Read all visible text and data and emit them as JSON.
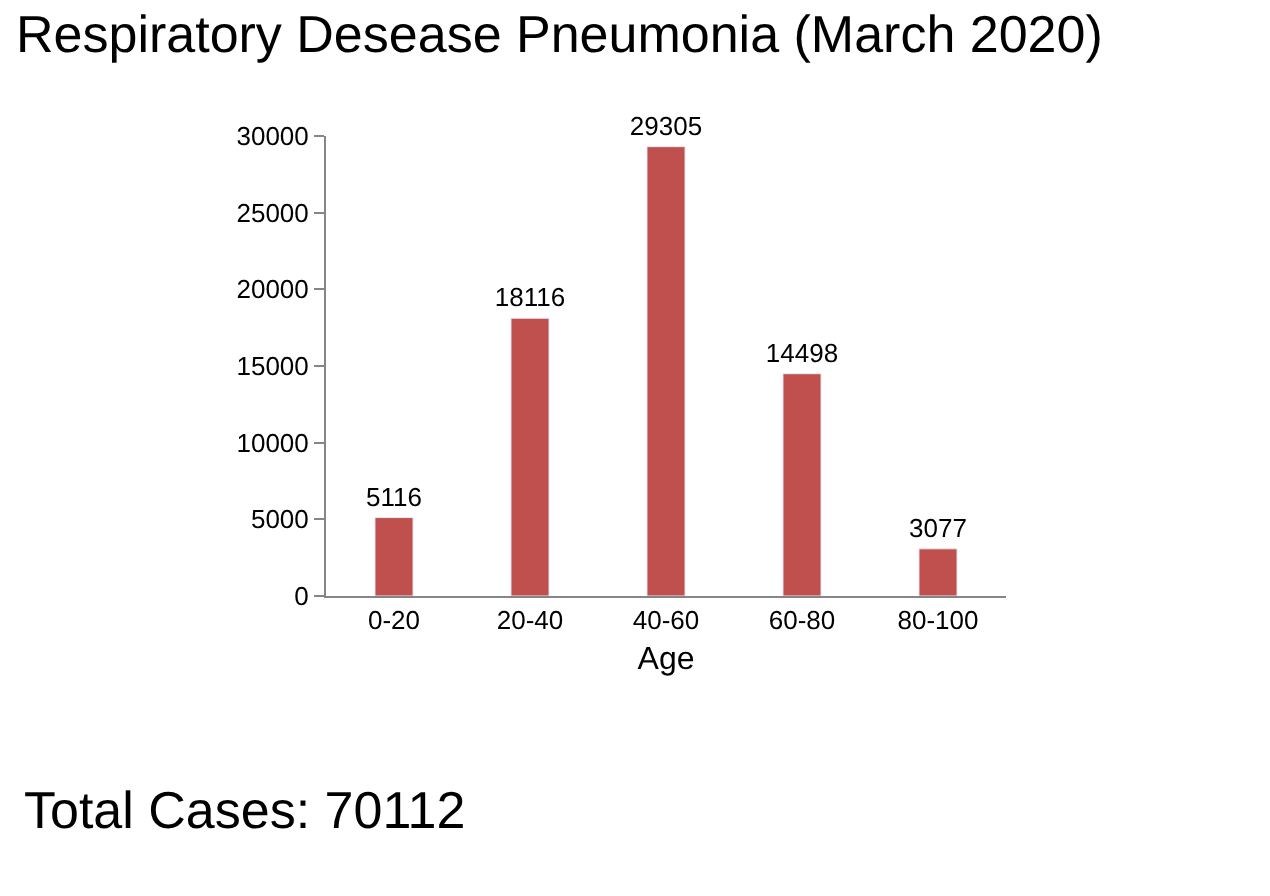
{
  "chart_data": {
    "type": "bar",
    "title": "Respiratory Desease Pneumonia (March 2020)",
    "xlabel": "Age",
    "categories": [
      "0-20",
      "20-40",
      "40-60",
      "60-80",
      "80-100"
    ],
    "values": [
      5116,
      18116,
      29305,
      14498,
      3077
    ],
    "color": "#c0504d",
    "ylim": [
      0,
      30000
    ],
    "yticks": [
      0,
      5000,
      10000,
      15000,
      20000,
      25000,
      30000
    ],
    "data_labels": true,
    "annotations": [
      "Total Cases: 70112"
    ]
  }
}
